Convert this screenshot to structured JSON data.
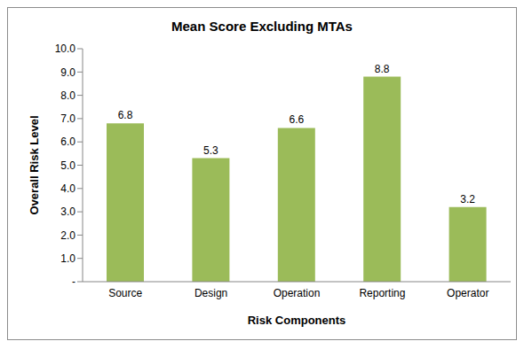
{
  "chart_data": {
    "type": "bar",
    "title": "Mean Score Excluding MTAs",
    "x_label": "Risk Components",
    "y_label": "Overall Risk Level",
    "categories": [
      "Source",
      "Design",
      "Operation",
      "Reporting",
      "Operator"
    ],
    "values": [
      6.8,
      5.3,
      6.6,
      8.8,
      3.2
    ],
    "color": "#9bbb59",
    "ylim": [
      0,
      10
    ],
    "yticks": [
      {
        "value": 0,
        "label": "-"
      },
      {
        "value": 1,
        "label": "1.0"
      },
      {
        "value": 2,
        "label": "2.0"
      },
      {
        "value": 3,
        "label": "3.0"
      },
      {
        "value": 4,
        "label": "4.0"
      },
      {
        "value": 5,
        "label": "5.0"
      },
      {
        "value": 6,
        "label": "6.0"
      },
      {
        "value": 7,
        "label": "7.0"
      },
      {
        "value": 8,
        "label": "8.0"
      },
      {
        "value": 9,
        "label": "9.0"
      },
      {
        "value": 10,
        "label": "10.0"
      }
    ],
    "grid": false,
    "data_labels": true
  }
}
